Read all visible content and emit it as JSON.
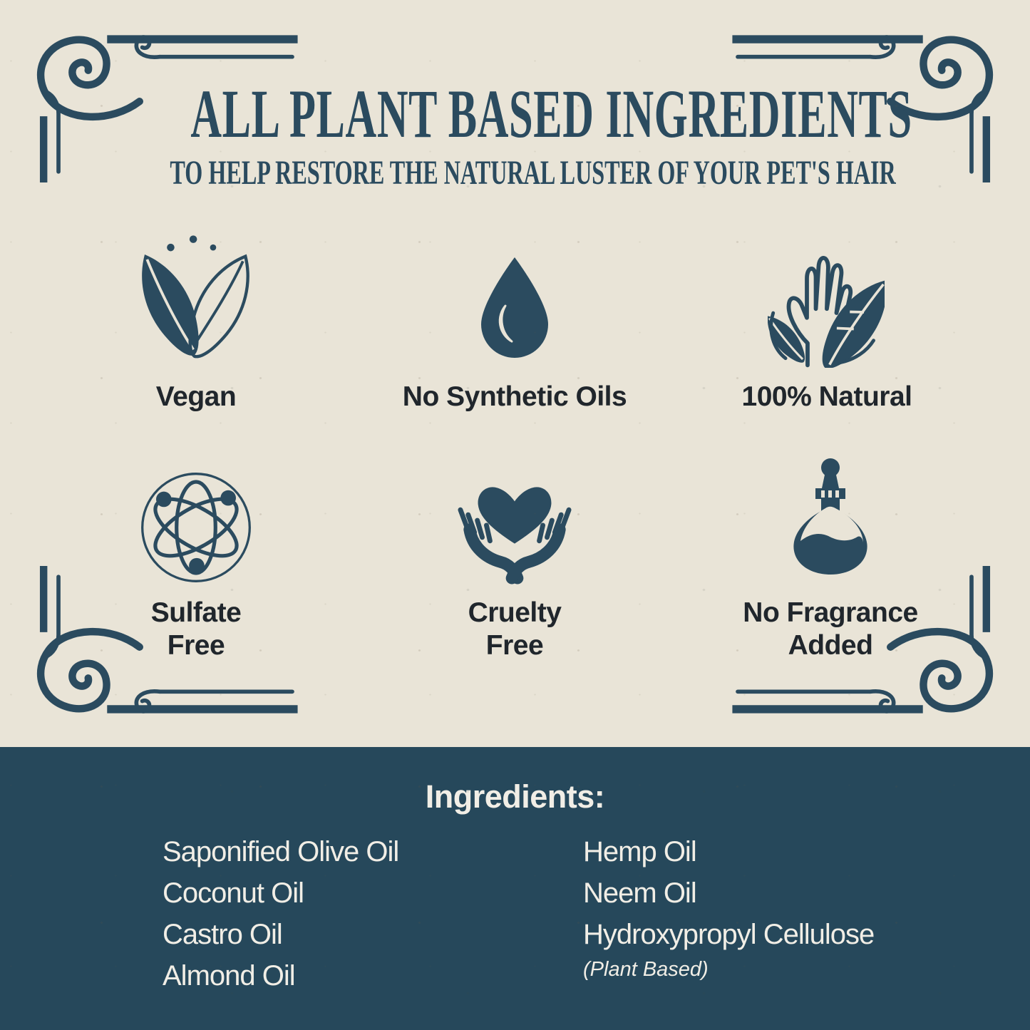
{
  "header": {
    "title": "ALL PLANT BASED INGREDIENTS",
    "subtitle": "TO HELP RESTORE THE NATURAL LUSTER OF YOUR PET'S HAIR"
  },
  "features": [
    {
      "icon": "vegan-leaves-icon",
      "label": "Vegan"
    },
    {
      "icon": "oil-droplet-icon",
      "label": "No Synthetic Oils"
    },
    {
      "icon": "hand-with-leaves-icon",
      "label": "100% Natural"
    },
    {
      "icon": "atom-icon",
      "label": "Sulfate\nFree"
    },
    {
      "icon": "heart-in-hands-icon",
      "label": "Cruelty\nFree"
    },
    {
      "icon": "fragrance-bottle-icon",
      "label": "No Fragrance\nAdded"
    }
  ],
  "ingredients": {
    "heading": "Ingredients:",
    "left_column": [
      "Saponified Olive Oil",
      "Coconut Oil",
      "Castro Oil",
      "Almond Oil"
    ],
    "right_column": [
      "Hemp Oil",
      "Neem Oil",
      "Hydroxypropyl Cellulose"
    ],
    "note": "(Plant Based)"
  },
  "colors": {
    "ink": "#2b4b5f",
    "paper": "#e9e4d7",
    "panel": "#26485b",
    "label": "#20262c",
    "panel_text": "#f1eee6"
  }
}
